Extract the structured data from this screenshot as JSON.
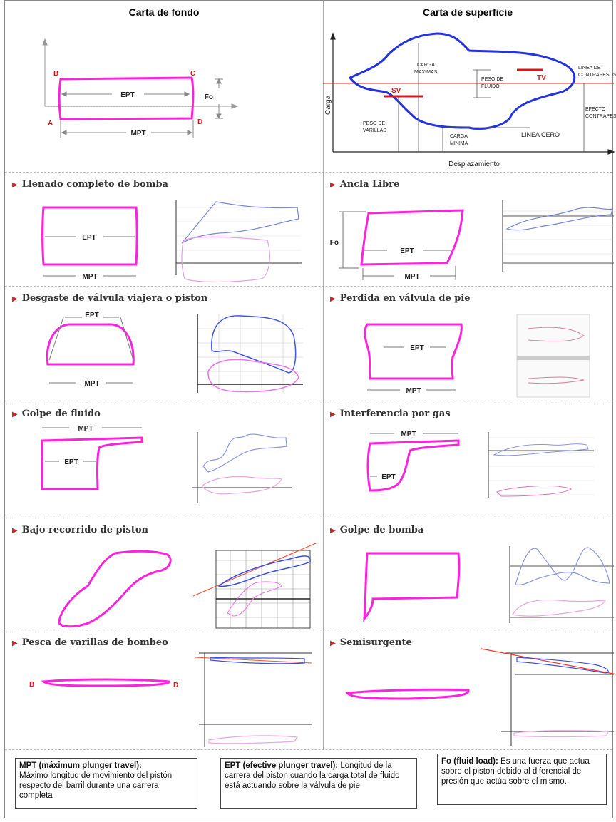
{
  "header": {
    "left_title": "Carta de fondo",
    "right_title": "Carta de superficie"
  },
  "fondo": {
    "corner_a": "A",
    "corner_b": "B",
    "corner_c": "C",
    "corner_d": "D",
    "ept": "EPT",
    "mpt": "MPT",
    "fo": "Fo"
  },
  "superficie": {
    "y_axis": "Carga",
    "x_axis": "Desplazamiento",
    "carga_maxima": "CARGA MAXIMAS",
    "peso_fluido": "PESO DE FLUIDO",
    "peso_varillas": "PESO DE VARILLAS",
    "carga_minima": "CARGA MINIMA",
    "linea_cero": "LINEA CERO",
    "linea_contrapesos": "LINEA DE CONTRAPESOS",
    "efecto_contrapesos": "EFECTO CONTRAPES",
    "sv": "SV",
    "tv": "TV"
  },
  "panels": [
    {
      "title": "Llenado completo de bomba",
      "labels": [
        "EPT",
        "MPT"
      ]
    },
    {
      "title": "Ancla Libre",
      "labels": [
        "EPT",
        "MPT",
        "Fo"
      ]
    },
    {
      "title": "Desgaste de válvula viajera o piston",
      "labels": [
        "EPT",
        "MPT"
      ]
    },
    {
      "title": "Perdida en válvula de pie",
      "labels": [
        "EPT",
        "MPT"
      ]
    },
    {
      "title": "Golpe de fluido",
      "labels": [
        "MPT",
        "EPT"
      ]
    },
    {
      "title": "Interferencia por gas",
      "labels": [
        "MPT",
        "EPT"
      ]
    },
    {
      "title": "Bajo recorrido de piston",
      "labels": []
    },
    {
      "title": "Golpe de bomba",
      "labels": []
    },
    {
      "title": "Pesca de varillas de bombeo",
      "labels": [
        "B",
        "D"
      ]
    },
    {
      "title": "Semisurgente",
      "labels": []
    }
  ],
  "definitions": {
    "mpt_term": "MPT (máximum plunger travel):",
    "mpt_text": "Máximo longitud de movimiento del pistón respecto del barril durante una carrera completa",
    "ept_term": "EPT (efective plunger travel):",
    "ept_text": "Longitud de la carrera del piston cuando la carga total de fluido está actuando sobre la válvula de pie",
    "fo_term": "Fo (fluid load):",
    "fo_text": "Es una fuerza que actua sobre el piston debido al diferencial de presión que actúa sobre el mismo."
  },
  "colors": {
    "magenta": "#ff22dd",
    "blue": "#2433e0",
    "red": "#e0141a",
    "pink": "#e88ce0"
  }
}
